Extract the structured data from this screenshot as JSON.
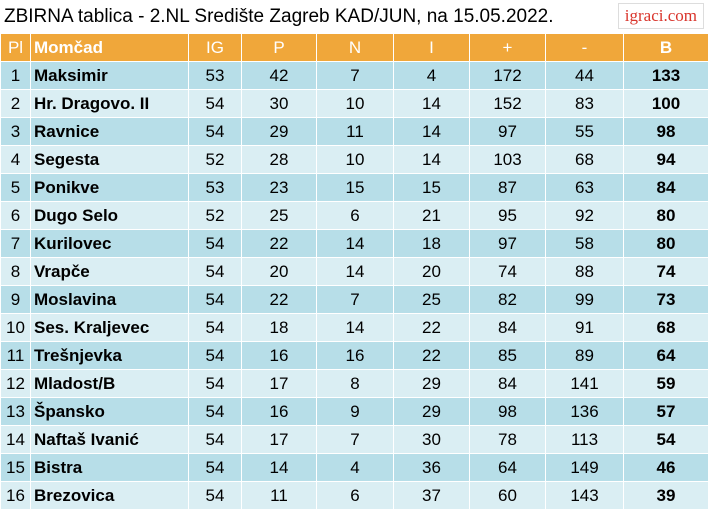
{
  "header": {
    "title": "ZBIRNA tablica - 2.NL Središte Zagreb KAD/JUN, na 15.05.2022.",
    "logo": "igraci.com"
  },
  "table": {
    "columns": [
      "Pl",
      "Momčad",
      "IG",
      "P",
      "N",
      "I",
      "+",
      "-",
      "B"
    ],
    "rows": [
      [
        1,
        "Maksimir",
        53,
        42,
        7,
        4,
        172,
        44,
        133
      ],
      [
        2,
        "Hr. Dragovo. II",
        54,
        30,
        10,
        14,
        152,
        83,
        100
      ],
      [
        3,
        "Ravnice",
        54,
        29,
        11,
        14,
        97,
        55,
        98
      ],
      [
        4,
        "Segesta",
        52,
        28,
        10,
        14,
        103,
        68,
        94
      ],
      [
        5,
        "Ponikve",
        53,
        23,
        15,
        15,
        87,
        63,
        84
      ],
      [
        6,
        "Dugo Selo",
        52,
        25,
        6,
        21,
        95,
        92,
        80
      ],
      [
        7,
        "Kurilovec",
        54,
        22,
        14,
        18,
        97,
        58,
        80
      ],
      [
        8,
        "Vrapče",
        54,
        20,
        14,
        20,
        74,
        88,
        74
      ],
      [
        9,
        "Moslavina",
        54,
        22,
        7,
        25,
        82,
        99,
        73
      ],
      [
        10,
        "Ses. Kraljevec",
        54,
        18,
        14,
        22,
        84,
        91,
        68
      ],
      [
        11,
        "Trešnjevka",
        54,
        16,
        16,
        22,
        85,
        89,
        64
      ],
      [
        12,
        "Mladost/B",
        54,
        17,
        8,
        29,
        84,
        141,
        59
      ],
      [
        13,
        "Špansko",
        54,
        16,
        9,
        29,
        98,
        136,
        57
      ],
      [
        14,
        "Naftaš Ivanić",
        54,
        17,
        7,
        30,
        78,
        113,
        54
      ],
      [
        15,
        "Bistra",
        54,
        14,
        4,
        36,
        64,
        149,
        46
      ],
      [
        16,
        "Brezovica",
        54,
        11,
        6,
        37,
        60,
        143,
        39
      ]
    ]
  }
}
